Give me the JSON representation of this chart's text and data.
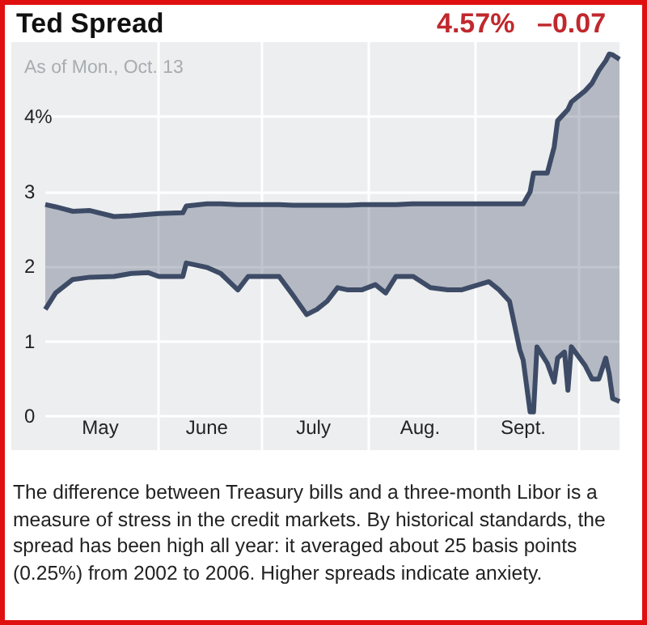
{
  "chart_data": {
    "type": "line",
    "title": "Ted Spread",
    "annotations": [
      "4.57%",
      "–0.07",
      "As of Mon., Oct. 13",
      "The difference between Treasury bills and a three-month Libor is a measure of stress in the credit markets. By historical standards, the spread has been high all year: it averaged about 25 basis points (0.25%) from 2002 to 2006. Higher spreads indicate anxiety."
    ],
    "x": [
      "--04-29",
      "--05-02",
      "--05-07",
      "--05-12",
      "--05-19",
      "--05-24",
      "--05-29",
      "--06-01",
      "--06-08",
      "--06-09",
      "--06-15",
      "--06-19",
      "--06-24",
      "--06-27",
      "--07-06",
      "--07-10",
      "--07-14",
      "--07-17",
      "--07-20",
      "--07-23",
      "--07-26",
      "--07-30",
      "--08-03",
      "--08-06",
      "--08-09",
      "--08-14",
      "--08-19",
      "--08-24",
      "--08-28",
      "--09-05",
      "--09-08",
      "--09-11",
      "--09-14",
      "--09-15",
      "--09-17",
      "--09-18",
      "--09-19",
      "--09-22",
      "--09-24",
      "--09-25",
      "--09-27",
      "--09-28",
      "--09-29",
      "--10-03",
      "--10-05",
      "--10-07",
      "--10-09",
      "--10-10",
      "--10-11",
      "--10-13"
    ],
    "series": [
      {
        "color": "#3d4b66",
        "values": [
          1.43,
          1.65,
          1.83,
          1.86,
          1.87,
          1.91,
          1.92,
          1.87,
          1.87,
          2.05,
          1.99,
          1.91,
          1.69,
          1.87,
          1.87,
          1.62,
          1.36,
          1.43,
          1.54,
          1.72,
          1.69,
          1.69,
          1.76,
          1.65,
          1.87,
          1.87,
          1.72,
          1.69,
          1.69,
          1.8,
          1.69,
          1.54,
          0.89,
          0.75,
          0.06,
          0.06,
          0.93,
          0.71,
          0.46,
          0.78,
          0.86,
          0.35,
          0.93,
          0.68,
          0.5,
          0.5,
          0.78,
          0.57,
          0.24,
          0.2
        ]
      },
      {
        "color": "#3d4b66",
        "values": [
          2.83,
          2.8,
          2.74,
          2.75,
          2.67,
          2.68,
          2.7,
          2.71,
          2.72,
          2.81,
          2.84,
          2.84,
          2.83,
          2.83,
          2.83,
          2.82,
          2.82,
          2.82,
          2.82,
          2.82,
          2.82,
          2.83,
          2.83,
          2.83,
          2.83,
          2.84,
          2.84,
          2.84,
          2.84,
          2.84,
          2.84,
          2.84,
          2.84,
          2.84,
          3,
          3.25,
          3.25,
          3.25,
          3.6,
          3.95,
          4.05,
          4.1,
          4.2,
          4.35,
          4.45,
          4.62,
          4.75,
          4.84,
          4.83,
          4.77
        ],
        "lower": [
          1.43,
          1.65,
          1.83,
          1.86,
          1.87,
          1.91,
          1.92,
          1.87,
          1.87,
          2.05,
          1.99,
          1.91,
          1.69,
          1.87,
          1.87,
          1.62,
          1.36,
          1.43,
          1.54,
          1.72,
          1.69,
          1.69,
          1.76,
          1.65,
          1.87,
          1.87,
          1.72,
          1.69,
          1.69,
          1.8,
          1.69,
          1.54,
          0.89,
          0.75,
          0.06,
          0.06,
          0.93,
          0.71,
          0.46,
          0.78,
          0.86,
          0.35,
          0.93,
          0.68,
          0.5,
          0.5,
          0.78,
          0.57,
          0.24,
          0.2
        ],
        "upper": [
          2.83,
          2.8,
          2.74,
          2.75,
          2.67,
          2.68,
          2.7,
          2.71,
          2.72,
          2.81,
          2.84,
          2.84,
          2.83,
          2.83,
          2.83,
          2.82,
          2.82,
          2.82,
          2.82,
          2.82,
          2.82,
          2.83,
          2.83,
          2.83,
          2.83,
          2.84,
          2.84,
          2.84,
          2.84,
          2.84,
          2.84,
          2.84,
          2.84,
          2.84,
          3,
          3.25,
          3.25,
          3.25,
          3.6,
          3.95,
          4.05,
          4.1,
          4.2,
          4.35,
          4.45,
          4.62,
          4.75,
          4.84,
          4.83,
          4.77
        ]
      }
    ],
    "xlim": [
      "--04-29",
      "--10-13"
    ],
    "xticks": [
      {
        "value": "--05-15",
        "label": "May"
      },
      {
        "value": "--06-01",
        "label": null
      },
      {
        "value": "--06-15",
        "label": "June"
      },
      {
        "value": "--07-01",
        "label": null
      },
      {
        "value": "--07-16",
        "label": "July"
      },
      {
        "value": "--08-01",
        "label": null
      },
      {
        "value": "--08-16",
        "label": "Aug."
      },
      {
        "value": "--09-01",
        "label": null
      },
      {
        "value": "--09-15",
        "label": "Sept."
      },
      {
        "value": "--10-01",
        "label": null
      }
    ],
    "ylim": [
      -0.45,
      5
    ],
    "yticks": [
      0,
      1,
      2,
      3,
      {
        "value": 4,
        "label": "4%"
      }
    ],
    "grid": true,
    "marker": "none",
    "line_style": "solid"
  }
}
